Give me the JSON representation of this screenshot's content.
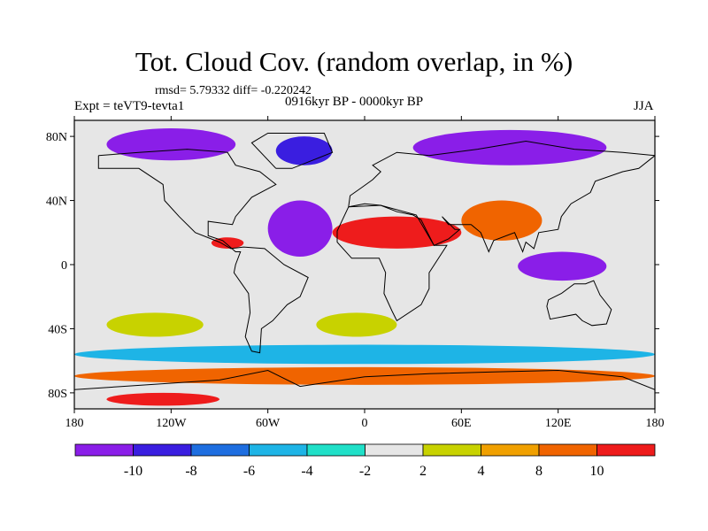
{
  "figure": {
    "title": "Tot. Cloud Cov. (random overlap, in %)",
    "stats": "rmsd= 5.79332 diff= -0.220242",
    "experiment": "Expt = teVT9-tevta1",
    "period": "0916kyr BP - 0000kyr BP",
    "season": "JJA"
  },
  "axes": {
    "lon_range": [
      -180,
      180
    ],
    "lat_range": [
      -90,
      90
    ],
    "x_ticks": [
      {
        "value": -180,
        "label": "180"
      },
      {
        "value": -120,
        "label": "120W"
      },
      {
        "value": -60,
        "label": "60W"
      },
      {
        "value": 0,
        "label": "0"
      },
      {
        "value": 60,
        "label": "60E"
      },
      {
        "value": 120,
        "label": "120E"
      },
      {
        "value": 180,
        "label": "180"
      }
    ],
    "y_ticks": [
      {
        "value": 80,
        "label": "80N"
      },
      {
        "value": 40,
        "label": "40N"
      },
      {
        "value": 0,
        "label": "0"
      },
      {
        "value": -40,
        "label": "40S"
      },
      {
        "value": -80,
        "label": "80S"
      }
    ]
  },
  "colorbar": {
    "colors": [
      "#8a1ee8",
      "#3a1ee0",
      "#1e6ee0",
      "#1eb4e6",
      "#20e0c8",
      "#e6e6e6",
      "#c8d200",
      "#f0a000",
      "#f06400",
      "#ee1c1c"
    ],
    "boundaries": [
      "-10",
      "-8",
      "-6",
      "-4",
      "-2",
      "2",
      "4",
      "8",
      "10"
    ]
  },
  "chart_data": {
    "type": "heatmap",
    "variable": "Total cloud cover difference (random overlap, %)",
    "levels": [
      -10,
      -8,
      -6,
      -4,
      -2,
      2,
      4,
      8,
      10
    ],
    "regions": [
      {
        "name": "North Pacific / Arctic Canada",
        "lon": [
          -160,
          -80
        ],
        "lat": [
          65,
          85
        ],
        "class": 0
      },
      {
        "name": "Siberia / Arctic Russia",
        "lon": [
          30,
          150
        ],
        "lat": [
          62,
          84
        ],
        "class": 0
      },
      {
        "name": "Greenland",
        "lon": [
          -55,
          -20
        ],
        "lat": [
          62,
          80
        ],
        "class": 1
      },
      {
        "name": "North Atlantic",
        "lon": [
          -60,
          -20
        ],
        "lat": [
          5,
          40
        ],
        "class": 0
      },
      {
        "name": "Maritime Continent",
        "lon": [
          95,
          150
        ],
        "lat": [
          -10,
          8
        ],
        "class": 0
      },
      {
        "name": "Sahara / Arabia",
        "lon": [
          -20,
          60
        ],
        "lat": [
          10,
          30
        ],
        "class": 9
      },
      {
        "name": "South Asia",
        "lon": [
          60,
          110
        ],
        "lat": [
          15,
          40
        ],
        "class": 8
      },
      {
        "name": "Central America",
        "lon": [
          -95,
          -75
        ],
        "lat": [
          10,
          17
        ],
        "class": 9
      },
      {
        "name": "Southern Ocean",
        "lon": [
          -180,
          180
        ],
        "lat": [
          -62,
          -50
        ],
        "class": 3
      },
      {
        "name": "Antarctic margin",
        "lon": [
          -180,
          180
        ],
        "lat": [
          -75,
          -64
        ],
        "class": 8
      },
      {
        "name": "Antarctica south",
        "lon": [
          -160,
          -90
        ],
        "lat": [
          -88,
          -80
        ],
        "class": 9
      },
      {
        "name": "South Atlantic subtropics",
        "lon": [
          -30,
          20
        ],
        "lat": [
          -45,
          -30
        ],
        "class": 6
      },
      {
        "name": "South Pacific subtropics",
        "lon": [
          -160,
          -100
        ],
        "lat": [
          -45,
          -30
        ],
        "class": 6
      }
    ]
  }
}
